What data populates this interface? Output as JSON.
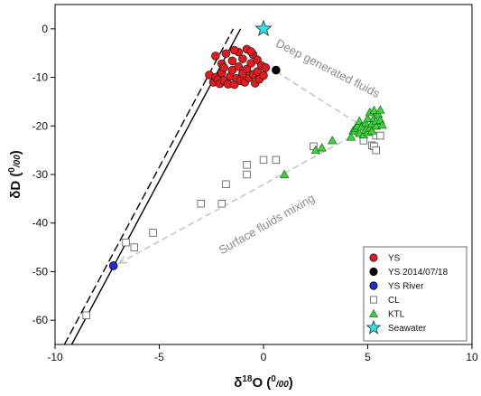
{
  "chart_data": {
    "type": "scatter",
    "x_axis": {
      "label_main": "δ",
      "label_sup": "18",
      "label_rest": "O (",
      "label_unit_sup": "0",
      "label_unit_sub": "/00",
      "label_close": ")",
      "range": [
        -10,
        10
      ],
      "ticks": [
        -10,
        -5,
        0,
        5,
        10
      ],
      "tick_labels": [
        "-10",
        "-5",
        "0",
        "5",
        "10"
      ]
    },
    "y_axis": {
      "label_main": "δD (",
      "label_unit_sup": "0",
      "label_unit_sub": "/00",
      "label_close": ")",
      "range": [
        -65,
        5
      ],
      "ticks": [
        0,
        -10,
        -20,
        -30,
        -40,
        -50,
        -60
      ],
      "tick_labels": [
        "0",
        "-10",
        "-20",
        "-30",
        "-40",
        "-50",
        "-60"
      ]
    },
    "legend_position": "bottom-right",
    "reference_lines": [
      {
        "style": "solid",
        "color": "#000000",
        "points": [
          [
            -9.2,
            -65
          ],
          [
            -1.1,
            0
          ]
        ]
      },
      {
        "style": "dashed",
        "color": "#000000",
        "points": [
          [
            -9.55,
            -65
          ],
          [
            -1.45,
            0
          ]
        ]
      }
    ],
    "arrows": [
      {
        "from": [
          0.6,
          -8.8
        ],
        "to": [
          4.9,
          -20.5
        ],
        "color": "#c0c0c0"
      },
      {
        "from": [
          4.6,
          -21.3
        ],
        "to": [
          -6.9,
          -48.2
        ],
        "color": "#c0c0c0"
      }
    ],
    "annotations": [
      {
        "text": "Deep generated fluids",
        "x": 0.55,
        "y": -3.5,
        "angle": 27
      },
      {
        "text": "Surface fluids mixing",
        "x": -2.0,
        "y": -46.5,
        "angle": -30
      }
    ],
    "series": [
      {
        "name": "YS",
        "marker": "circle",
        "color": "#e8191c",
        "stroke": "#222222",
        "points": [
          [
            -2.6,
            -9.5
          ],
          [
            -2.4,
            -11
          ],
          [
            -2.3,
            -10
          ],
          [
            -2.3,
            -5.6
          ],
          [
            -2.2,
            -10.5
          ],
          [
            -2.1,
            -11.3
          ],
          [
            -2.0,
            -9.1
          ],
          [
            -2.0,
            -7.2
          ],
          [
            -1.9,
            -10.6
          ],
          [
            -1.8,
            -5.1
          ],
          [
            -1.7,
            -11.4
          ],
          [
            -1.6,
            -9.8
          ],
          [
            -1.5,
            -8.5
          ],
          [
            -1.5,
            -6.6
          ],
          [
            -1.4,
            -11.5
          ],
          [
            -1.3,
            -10.2
          ],
          [
            -1.2,
            -7.8
          ],
          [
            -1.2,
            -4.8
          ],
          [
            -1.1,
            -10.7
          ],
          [
            -1.0,
            -9.2
          ],
          [
            -1.0,
            -6.2
          ],
          [
            -0.9,
            -11.0
          ],
          [
            -0.8,
            -8.3
          ],
          [
            -0.8,
            -4.2
          ],
          [
            -0.7,
            -10.1
          ],
          [
            -0.6,
            -7.1
          ],
          [
            -0.5,
            -9.4
          ],
          [
            -0.5,
            -5.3
          ],
          [
            -0.4,
            -11.2
          ],
          [
            -0.3,
            -8.8
          ],
          [
            -0.3,
            -6.4
          ],
          [
            -0.2,
            -10.4
          ],
          [
            -0.1,
            -7.6
          ],
          [
            0.0,
            -9.6
          ],
          [
            0.1,
            -8.0
          ],
          [
            -1.9,
            -8.0
          ],
          [
            -1.4,
            -4.4
          ],
          [
            -0.6,
            -4.7
          ]
        ]
      },
      {
        "name": "YS 2014/07/18",
        "marker": "circle",
        "color": "#000000",
        "stroke": "#000000",
        "points": [
          [
            0.6,
            -8.5
          ]
        ]
      },
      {
        "name": "YS River",
        "marker": "circle",
        "color": "#1f2fd4",
        "stroke": "#000000",
        "points": [
          [
            -7.2,
            -48.8
          ]
        ]
      },
      {
        "name": "CL",
        "marker": "square",
        "color": "#ffffff",
        "stroke": "#555555",
        "points": [
          [
            -8.5,
            -59
          ],
          [
            -6.6,
            -44
          ],
          [
            -6.2,
            -45
          ],
          [
            -5.3,
            -42
          ],
          [
            -3.0,
            -36
          ],
          [
            -2.0,
            -36
          ],
          [
            -1.8,
            -32
          ],
          [
            -0.8,
            -30
          ],
          [
            -0.8,
            -28
          ],
          [
            0.0,
            -27
          ],
          [
            0.6,
            -27
          ],
          [
            2.4,
            -24.2
          ],
          [
            4.8,
            -23
          ],
          [
            5.2,
            -24
          ],
          [
            5.3,
            -24.2
          ],
          [
            5.4,
            -25
          ],
          [
            5.4,
            -22
          ],
          [
            5.6,
            -22
          ]
        ]
      },
      {
        "name": "KTL",
        "marker": "triangle",
        "color": "#3fd13f",
        "stroke": "#1a6a1a",
        "points": [
          [
            1.0,
            -30
          ],
          [
            2.5,
            -25
          ],
          [
            2.8,
            -24.5
          ],
          [
            3.3,
            -23
          ],
          [
            4.3,
            -21
          ],
          [
            4.4,
            -20.5
          ],
          [
            4.5,
            -20
          ],
          [
            4.6,
            -19
          ],
          [
            4.6,
            -21.5
          ],
          [
            4.7,
            -20.2
          ],
          [
            4.8,
            -21.8
          ],
          [
            4.9,
            -19.4
          ],
          [
            4.9,
            -20.8
          ],
          [
            5.0,
            -21.3
          ],
          [
            5.0,
            -18.5
          ],
          [
            5.1,
            -20.4
          ],
          [
            5.1,
            -17.2
          ],
          [
            5.2,
            -19.6
          ],
          [
            5.2,
            -21
          ],
          [
            5.3,
            -18.4
          ],
          [
            5.3,
            -16.8
          ],
          [
            5.4,
            -20
          ],
          [
            5.4,
            -19
          ],
          [
            5.5,
            -17.6
          ],
          [
            5.6,
            -18.8
          ],
          [
            5.6,
            -16.7
          ],
          [
            5.7,
            -19.8
          ],
          [
            4.2,
            -22.3
          ]
        ]
      },
      {
        "name": "Seawater",
        "marker": "star",
        "color": "#2fe3e8",
        "stroke": "#2a2a2a",
        "points": [
          [
            0,
            0
          ]
        ]
      }
    ]
  }
}
